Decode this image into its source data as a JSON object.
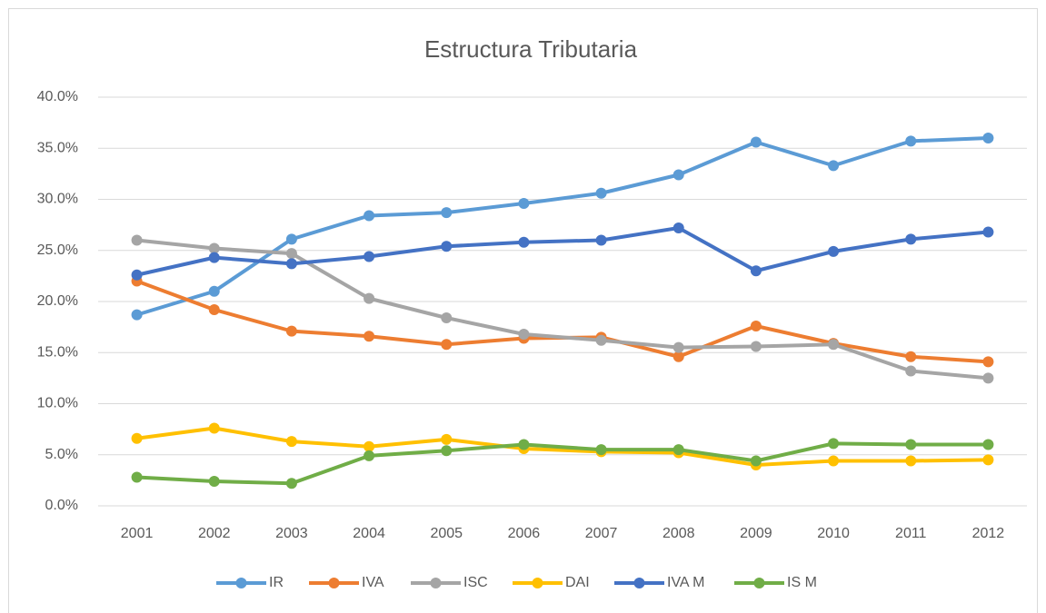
{
  "chart_data": {
    "type": "line",
    "title": "Estructura Tributaria",
    "categories": [
      "2001",
      "2002",
      "2003",
      "2004",
      "2005",
      "2006",
      "2007",
      "2008",
      "2009",
      "2010",
      "2011",
      "2012"
    ],
    "series": [
      {
        "name": "IR",
        "color": "#5b9bd5",
        "values": [
          18.7,
          21.0,
          26.1,
          28.4,
          28.7,
          29.6,
          30.6,
          32.4,
          35.6,
          33.3,
          35.7,
          36.0
        ]
      },
      {
        "name": "IVA",
        "color": "#ed7d31",
        "values": [
          22.0,
          19.2,
          17.1,
          16.6,
          15.8,
          16.4,
          16.5,
          14.6,
          17.6,
          15.9,
          14.6,
          14.1
        ]
      },
      {
        "name": "ISC",
        "color": "#a5a5a5",
        "values": [
          26.0,
          25.2,
          24.7,
          20.3,
          18.4,
          16.8,
          16.2,
          15.5,
          15.6,
          15.8,
          13.2,
          12.5
        ]
      },
      {
        "name": "DAI",
        "color": "#ffc000",
        "values": [
          6.6,
          7.6,
          6.3,
          5.8,
          6.5,
          5.6,
          5.3,
          5.2,
          4.0,
          4.4,
          4.4,
          4.5
        ]
      },
      {
        "name": "IVA M",
        "color": "#4472c4",
        "values": [
          22.6,
          24.3,
          23.7,
          24.4,
          25.4,
          25.8,
          26.0,
          27.2,
          23.0,
          24.9,
          26.1,
          26.8
        ]
      },
      {
        "name": "IS M",
        "color": "#70ad47",
        "values": [
          2.8,
          2.4,
          2.2,
          4.9,
          5.4,
          6.0,
          5.5,
          5.5,
          4.4,
          6.1,
          6.0,
          6.0
        ]
      }
    ],
    "ylim": [
      0,
      40
    ],
    "yticks": [
      {
        "value": 0,
        "label": "0.0%"
      },
      {
        "value": 5,
        "label": "5.0%"
      },
      {
        "value": 10,
        "label": "10.0%"
      },
      {
        "value": 15,
        "label": "15.0%"
      },
      {
        "value": 20,
        "label": "20.0%"
      },
      {
        "value": 25,
        "label": "25.0%"
      },
      {
        "value": 30,
        "label": "30.0%"
      },
      {
        "value": 35,
        "label": "35.0%"
      },
      {
        "value": 40,
        "label": "40.0%"
      }
    ],
    "grid": true,
    "legend": "bottom"
  }
}
